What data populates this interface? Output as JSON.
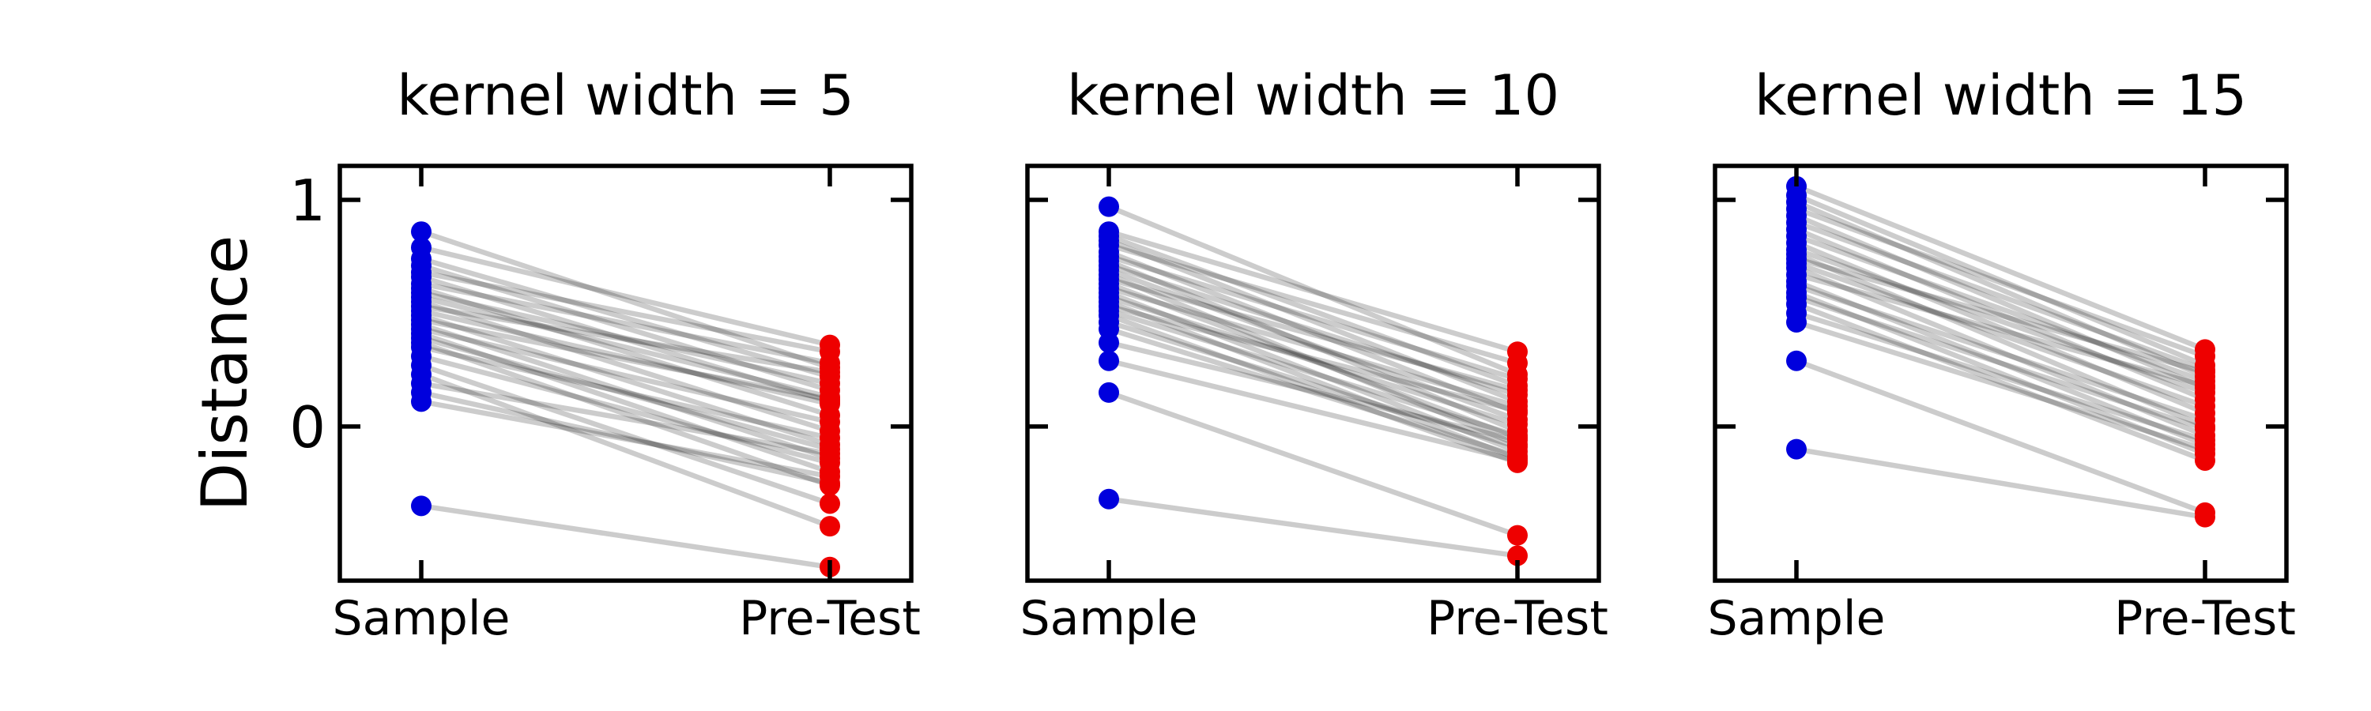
{
  "chart_data": [
    {
      "type": "line",
      "title": "kernel width = 5",
      "ylabel": "Distance",
      "categories": [
        "Sample",
        "Pre-Test"
      ],
      "ylim": [
        -0.68,
        1.15
      ],
      "yticks": [
        0,
        1
      ],
      "grid": false,
      "legend": "none",
      "colors": {
        "Sample": "#0000dd",
        "Pre-Test": "#ee0000",
        "lines": "#000000"
      },
      "pairs": [
        [
          0.86,
          0.26
        ],
        [
          0.79,
          0.36
        ],
        [
          0.74,
          0.22
        ],
        [
          0.71,
          0.16
        ],
        [
          0.68,
          0.33
        ],
        [
          0.66,
          0.11
        ],
        [
          0.63,
          0.28
        ],
        [
          0.61,
          0.05
        ],
        [
          0.59,
          0.19
        ],
        [
          0.57,
          0.13
        ],
        [
          0.55,
          -0.02
        ],
        [
          0.53,
          0.24
        ],
        [
          0.51,
          0.1
        ],
        [
          0.49,
          -0.08
        ],
        [
          0.47,
          0.12
        ],
        [
          0.45,
          -0.14
        ],
        [
          0.43,
          0.02
        ],
        [
          0.41,
          -0.2
        ],
        [
          0.39,
          -0.1
        ],
        [
          0.37,
          -0.26
        ],
        [
          0.35,
          -0.05
        ],
        [
          0.31,
          -0.16
        ],
        [
          0.27,
          -0.34
        ],
        [
          0.23,
          -0.44
        ],
        [
          0.19,
          -0.12
        ],
        [
          0.15,
          -0.25
        ],
        [
          0.11,
          -0.22
        ],
        [
          -0.35,
          -0.62
        ]
      ]
    },
    {
      "type": "line",
      "title": "kernel width = 10",
      "ylabel": "",
      "categories": [
        "Sample",
        "Pre-Test"
      ],
      "ylim": [
        -0.68,
        1.15
      ],
      "yticks": [
        0,
        1
      ],
      "grid": false,
      "legend": "none",
      "colors": {
        "Sample": "#0000dd",
        "Pre-Test": "#ee0000",
        "lines": "#000000"
      },
      "pairs": [
        [
          0.97,
          0.23
        ],
        [
          0.86,
          0.33
        ],
        [
          0.84,
          0.18
        ],
        [
          0.82,
          0.11
        ],
        [
          0.8,
          0.28
        ],
        [
          0.77,
          0.06
        ],
        [
          0.75,
          0.21
        ],
        [
          0.73,
          -0.02
        ],
        [
          0.71,
          0.14
        ],
        [
          0.69,
          0.03
        ],
        [
          0.67,
          -0.08
        ],
        [
          0.65,
          0.16
        ],
        [
          0.63,
          -0.05
        ],
        [
          0.61,
          0.09
        ],
        [
          0.59,
          -0.11
        ],
        [
          0.57,
          0.01
        ],
        [
          0.55,
          -0.14
        ],
        [
          0.53,
          0.07
        ],
        [
          0.51,
          -0.04
        ],
        [
          0.49,
          -0.16
        ],
        [
          0.46,
          -0.09
        ],
        [
          0.43,
          -0.13
        ],
        [
          0.37,
          -0.06
        ],
        [
          0.29,
          -0.15
        ],
        [
          0.15,
          -0.48
        ],
        [
          -0.32,
          -0.57
        ]
      ]
    },
    {
      "type": "line",
      "title": "kernel width = 15",
      "ylabel": "",
      "categories": [
        "Sample",
        "Pre-Test"
      ],
      "ylim": [
        -0.68,
        1.15
      ],
      "yticks": [
        0,
        1
      ],
      "grid": false,
      "legend": "none",
      "colors": {
        "Sample": "#0000dd",
        "Pre-Test": "#ee0000",
        "lines": "#000000"
      },
      "pairs": [
        [
          1.06,
          0.34
        ],
        [
          1.02,
          0.27
        ],
        [
          0.99,
          0.22
        ],
        [
          0.96,
          0.31
        ],
        [
          0.93,
          0.17
        ],
        [
          0.9,
          0.25
        ],
        [
          0.87,
          0.12
        ],
        [
          0.84,
          0.2
        ],
        [
          0.81,
          0.06
        ],
        [
          0.78,
          0.15
        ],
        [
          0.76,
          0.0
        ],
        [
          0.74,
          0.24
        ],
        [
          0.72,
          0.09
        ],
        [
          0.7,
          -0.04
        ],
        [
          0.67,
          0.18
        ],
        [
          0.64,
          -0.08
        ],
        [
          0.62,
          0.03
        ],
        [
          0.59,
          -0.12
        ],
        [
          0.57,
          -0.01
        ],
        [
          0.54,
          -0.15
        ],
        [
          0.5,
          -0.06
        ],
        [
          0.46,
          -0.1
        ],
        [
          0.29,
          -0.38
        ],
        [
          -0.1,
          -0.4
        ]
      ]
    }
  ]
}
